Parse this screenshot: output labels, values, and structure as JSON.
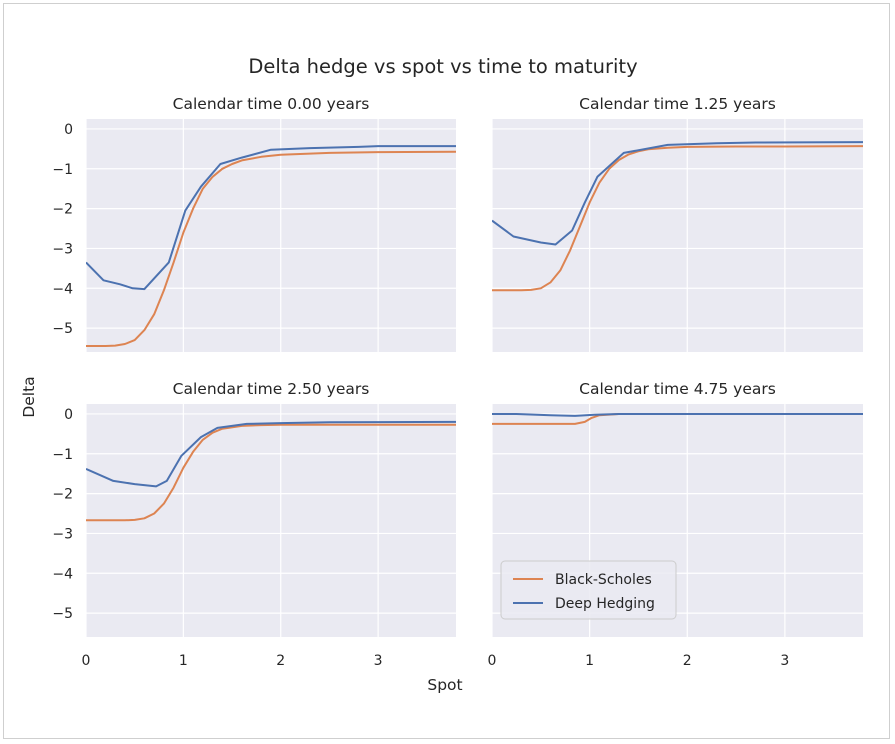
{
  "chart_data": {
    "type": "line",
    "title": "Delta hedge vs spot vs time to maturity",
    "xlabel": "Spot",
    "ylabel": "Delta",
    "xlim": [
      0,
      3.8
    ],
    "ylim": [
      -5.6,
      0.25
    ],
    "xticks": [
      0,
      1,
      2,
      3
    ],
    "yticks": [
      0,
      -1,
      -2,
      -3,
      -4,
      -5
    ],
    "grid": true,
    "shared_axes": true,
    "legend": {
      "location": "lower-left",
      "panel": 3
    },
    "colors": {
      "Black-Scholes": "#dd8452",
      "Deep Hedging": "#4c72b0",
      "background": "#eaeaf2"
    },
    "panels": [
      {
        "title": "Calendar time 0.00 years",
        "series": [
          {
            "name": "Black-Scholes",
            "x": [
              0,
              0.2,
              0.3,
              0.4,
              0.5,
              0.6,
              0.7,
              0.8,
              0.9,
              1.0,
              1.1,
              1.2,
              1.3,
              1.4,
              1.5,
              1.6,
              1.8,
              2.0,
              2.5,
              3.0,
              3.8
            ],
            "y": [
              -5.45,
              -5.45,
              -5.44,
              -5.4,
              -5.3,
              -5.05,
              -4.65,
              -4.05,
              -3.35,
              -2.6,
              -2.0,
              -1.5,
              -1.2,
              -1.0,
              -0.88,
              -0.79,
              -0.7,
              -0.65,
              -0.6,
              -0.58,
              -0.57
            ]
          },
          {
            "name": "Deep Hedging",
            "x": [
              0,
              0.18,
              0.35,
              0.48,
              0.6,
              0.85,
              1.02,
              1.18,
              1.38,
              1.6,
              1.9,
              2.3,
              2.8,
              3.0,
              3.8
            ],
            "y": [
              -3.35,
              -3.8,
              -3.9,
              -4.0,
              -4.02,
              -3.35,
              -2.05,
              -1.45,
              -0.88,
              -0.72,
              -0.52,
              -0.48,
              -0.45,
              -0.43,
              -0.43
            ]
          }
        ]
      },
      {
        "title": "Calendar time 1.25 years",
        "series": [
          {
            "name": "Black-Scholes",
            "x": [
              0,
              0.3,
              0.4,
              0.5,
              0.6,
              0.7,
              0.8,
              0.9,
              1.0,
              1.1,
              1.2,
              1.3,
              1.4,
              1.5,
              1.6,
              1.8,
              2.0,
              2.5,
              3.0,
              3.8
            ],
            "y": [
              -4.05,
              -4.05,
              -4.04,
              -4.0,
              -3.85,
              -3.55,
              -3.05,
              -2.45,
              -1.85,
              -1.35,
              -1.0,
              -0.78,
              -0.64,
              -0.56,
              -0.51,
              -0.47,
              -0.45,
              -0.44,
              -0.44,
              -0.43
            ]
          },
          {
            "name": "Deep Hedging",
            "x": [
              0,
              0.22,
              0.5,
              0.65,
              0.82,
              0.95,
              1.08,
              1.35,
              1.8,
              2.3,
              2.7,
              3.8
            ],
            "y": [
              -2.3,
              -2.7,
              -2.85,
              -2.9,
              -2.55,
              -1.85,
              -1.2,
              -0.6,
              -0.4,
              -0.36,
              -0.34,
              -0.33
            ]
          }
        ]
      },
      {
        "title": "Calendar time 2.50 years",
        "series": [
          {
            "name": "Black-Scholes",
            "x": [
              0,
              0.4,
              0.5,
              0.6,
              0.7,
              0.8,
              0.9,
              1.0,
              1.1,
              1.2,
              1.3,
              1.4,
              1.6,
              1.8,
              2.0,
              2.5,
              3.0,
              3.8
            ],
            "y": [
              -2.67,
              -2.67,
              -2.66,
              -2.62,
              -2.5,
              -2.25,
              -1.85,
              -1.35,
              -0.95,
              -0.65,
              -0.47,
              -0.37,
              -0.3,
              -0.28,
              -0.27,
              -0.27,
              -0.27,
              -0.27
            ]
          },
          {
            "name": "Deep Hedging",
            "x": [
              0,
              0.28,
              0.5,
              0.72,
              0.83,
              0.98,
              1.18,
              1.35,
              1.65,
              2.0,
              2.5,
              3.8
            ],
            "y": [
              -1.38,
              -1.68,
              -1.76,
              -1.82,
              -1.68,
              -1.05,
              -0.58,
              -0.35,
              -0.25,
              -0.23,
              -0.21,
              -0.2
            ]
          }
        ]
      },
      {
        "title": "Calendar time 4.75 years",
        "series": [
          {
            "name": "Black-Scholes",
            "x": [
              0,
              0.85,
              0.95,
              1.02,
              1.1,
              1.3,
              3.8
            ],
            "y": [
              -0.25,
              -0.25,
              -0.2,
              -0.1,
              -0.03,
              0.0,
              0.0
            ]
          },
          {
            "name": "Deep Hedging",
            "x": [
              0,
              0.25,
              0.6,
              0.85,
              1.05,
              1.3,
              3.8
            ],
            "y": [
              0.0,
              0.0,
              -0.03,
              -0.05,
              -0.02,
              0.0,
              0.0
            ]
          }
        ]
      }
    ]
  }
}
